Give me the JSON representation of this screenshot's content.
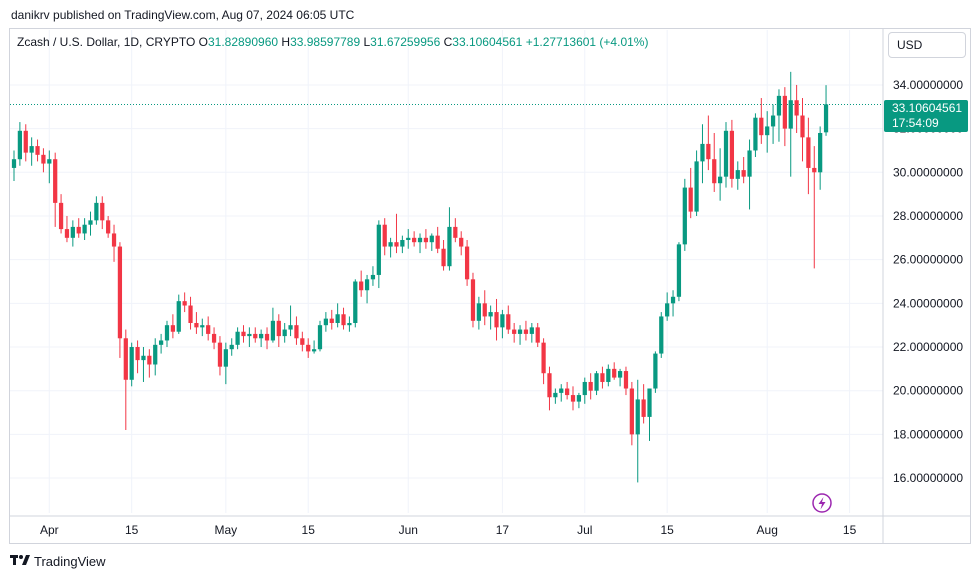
{
  "publisher_line": "danikrv published on TradingView.com, Aug 07, 2024 06:05 UTC",
  "legend": {
    "symbol": "Zcash / U.S. Dollar, 1D, CRYPTO",
    "o_label": "O",
    "o_value": "31.82890960",
    "h_label": "H",
    "h_value": "33.98597789",
    "l_label": "L",
    "l_value": "31.67259956",
    "c_label": "C",
    "c_value": "33.10604561",
    "change": "+1.27713601 (+4.01%)"
  },
  "currency_button": "USD",
  "last_price": {
    "value": "33.10604561",
    "countdown": "17:54:09"
  },
  "footer_brand": "TradingView",
  "colors": {
    "up": "#089981",
    "down": "#f23645",
    "grid": "#f0f3fa"
  },
  "icons": {
    "lightning": "lightning-icon",
    "logo": "tradingview-logo-icon"
  },
  "chart_data": {
    "type": "candlestick",
    "ylim": [
      14.4,
      35.6
    ],
    "y_ticks": [
      "16.00000000",
      "18.00000000",
      "20.00000000",
      "22.00000000",
      "24.00000000",
      "26.00000000",
      "28.00000000",
      "30.00000000",
      "32.00000000",
      "34.00000000"
    ],
    "y_tick_values": [
      16,
      18,
      20,
      22,
      24,
      26,
      28,
      30,
      32,
      34
    ],
    "x_tick_labels": [
      "Apr",
      "15",
      "May",
      "15",
      "Jun",
      "17",
      "Jul",
      "15",
      "Aug",
      "15"
    ],
    "x_tick_dates": [
      "2024-04-01",
      "2024-04-15",
      "2024-05-01",
      "2024-05-15",
      "2024-06-01",
      "2024-06-17",
      "2024-07-01",
      "2024-07-15",
      "2024-08-01",
      "2024-08-15"
    ],
    "x_range": [
      "2024-03-26",
      "2024-08-20"
    ],
    "last_close": 33.10604561,
    "ohlc": [
      [
        "2024-03-26",
        30.2,
        31.0,
        29.6,
        30.6
      ],
      [
        "2024-03-27",
        30.6,
        32.3,
        30.3,
        31.9
      ],
      [
        "2024-03-28",
        31.9,
        32.2,
        30.5,
        30.9
      ],
      [
        "2024-03-29",
        30.9,
        31.6,
        30.3,
        31.2
      ],
      [
        "2024-03-30",
        31.2,
        31.5,
        30.5,
        30.8
      ],
      [
        "2024-03-31",
        30.8,
        31.1,
        30.0,
        30.4
      ],
      [
        "2024-04-01",
        30.4,
        31.0,
        29.5,
        30.6
      ],
      [
        "2024-04-02",
        30.6,
        30.9,
        27.5,
        28.6
      ],
      [
        "2024-04-03",
        28.6,
        29.0,
        27.2,
        27.4
      ],
      [
        "2024-04-04",
        27.4,
        28.0,
        26.8,
        27.0
      ],
      [
        "2024-04-05",
        27.0,
        27.8,
        26.6,
        27.5
      ],
      [
        "2024-04-06",
        27.5,
        27.9,
        27.0,
        27.2
      ],
      [
        "2024-04-07",
        27.2,
        27.9,
        26.9,
        27.6
      ],
      [
        "2024-04-08",
        27.6,
        28.2,
        27.1,
        27.8
      ],
      [
        "2024-04-09",
        27.8,
        28.9,
        27.6,
        28.6
      ],
      [
        "2024-04-10",
        28.6,
        28.9,
        27.4,
        27.8
      ],
      [
        "2024-04-11",
        27.8,
        28.0,
        27.0,
        27.2
      ],
      [
        "2024-04-12",
        27.2,
        27.6,
        25.9,
        26.6
      ],
      [
        "2024-04-13",
        26.6,
        26.8,
        21.5,
        22.4
      ],
      [
        "2024-04-14",
        22.4,
        22.8,
        18.2,
        20.5
      ],
      [
        "2024-04-15",
        20.5,
        22.2,
        20.2,
        22.0
      ],
      [
        "2024-04-16",
        22.0,
        22.3,
        20.8,
        21.4
      ],
      [
        "2024-04-17",
        21.4,
        22.0,
        20.4,
        21.6
      ],
      [
        "2024-04-18",
        21.6,
        21.9,
        20.6,
        21.2
      ],
      [
        "2024-04-19",
        21.2,
        22.4,
        20.7,
        22.1
      ],
      [
        "2024-04-20",
        22.1,
        22.6,
        21.7,
        22.3
      ],
      [
        "2024-04-21",
        22.3,
        23.2,
        22.0,
        23.0
      ],
      [
        "2024-04-22",
        23.0,
        23.5,
        22.4,
        22.7
      ],
      [
        "2024-04-23",
        22.7,
        24.4,
        22.6,
        24.1
      ],
      [
        "2024-04-24",
        24.1,
        24.5,
        23.6,
        23.9
      ],
      [
        "2024-04-25",
        23.9,
        24.3,
        22.8,
        23.1
      ],
      [
        "2024-04-26",
        23.1,
        23.6,
        22.6,
        22.9
      ],
      [
        "2024-04-27",
        22.9,
        23.3,
        22.5,
        23.0
      ],
      [
        "2024-04-28",
        23.0,
        23.4,
        22.3,
        22.6
      ],
      [
        "2024-04-29",
        22.6,
        22.9,
        21.9,
        22.2
      ],
      [
        "2024-04-30",
        22.2,
        22.5,
        20.7,
        21.1
      ],
      [
        "2024-05-01",
        21.1,
        22.2,
        20.3,
        21.9
      ],
      [
        "2024-05-02",
        21.9,
        22.4,
        21.6,
        22.1
      ],
      [
        "2024-05-03",
        22.1,
        22.9,
        21.9,
        22.7
      ],
      [
        "2024-05-04",
        22.7,
        23.0,
        22.2,
        22.5
      ],
      [
        "2024-05-05",
        22.5,
        22.9,
        22.0,
        22.6
      ],
      [
        "2024-05-06",
        22.6,
        22.9,
        22.2,
        22.4
      ],
      [
        "2024-05-07",
        22.4,
        22.8,
        22.0,
        22.6
      ],
      [
        "2024-05-08",
        22.6,
        22.9,
        21.9,
        22.3
      ],
      [
        "2024-05-09",
        22.3,
        23.8,
        22.2,
        23.2
      ],
      [
        "2024-05-10",
        23.2,
        23.5,
        22.0,
        22.5
      ],
      [
        "2024-05-11",
        22.5,
        23.1,
        22.2,
        22.8
      ],
      [
        "2024-05-12",
        22.8,
        23.9,
        22.5,
        23.0
      ],
      [
        "2024-05-13",
        23.0,
        23.4,
        22.1,
        22.4
      ],
      [
        "2024-05-14",
        22.4,
        22.7,
        21.8,
        22.1
      ],
      [
        "2024-05-15",
        22.1,
        22.4,
        21.5,
        21.8
      ],
      [
        "2024-05-16",
        21.8,
        22.3,
        21.7,
        21.9
      ],
      [
        "2024-05-17",
        21.9,
        23.2,
        21.8,
        23.0
      ],
      [
        "2024-05-18",
        23.0,
        23.6,
        22.7,
        23.3
      ],
      [
        "2024-05-19",
        23.3,
        23.7,
        22.8,
        23.1
      ],
      [
        "2024-05-20",
        23.1,
        24.0,
        22.9,
        23.5
      ],
      [
        "2024-05-21",
        23.5,
        23.8,
        22.8,
        23.0
      ],
      [
        "2024-05-22",
        23.0,
        23.4,
        22.7,
        23.1
      ],
      [
        "2024-05-23",
        23.1,
        25.1,
        22.9,
        25.0
      ],
      [
        "2024-05-24",
        25.0,
        25.5,
        24.3,
        24.6
      ],
      [
        "2024-05-25",
        24.6,
        25.3,
        24.0,
        25.1
      ],
      [
        "2024-05-26",
        25.1,
        25.7,
        24.8,
        25.3
      ],
      [
        "2024-05-27",
        25.3,
        27.8,
        24.7,
        27.6
      ],
      [
        "2024-05-28",
        27.6,
        27.9,
        26.2,
        26.6
      ],
      [
        "2024-05-29",
        26.6,
        27.0,
        26.1,
        26.8
      ],
      [
        "2024-05-30",
        26.8,
        28.1,
        26.3,
        26.6
      ],
      [
        "2024-05-31",
        26.6,
        27.1,
        26.3,
        26.9
      ],
      [
        "2024-06-01",
        26.9,
        27.4,
        26.5,
        27.0
      ],
      [
        "2024-06-02",
        27.0,
        27.3,
        26.6,
        26.8
      ],
      [
        "2024-06-03",
        26.8,
        27.2,
        26.3,
        27.0
      ],
      [
        "2024-06-04",
        27.0,
        27.4,
        26.5,
        26.8
      ],
      [
        "2024-06-05",
        26.8,
        27.2,
        26.4,
        27.1
      ],
      [
        "2024-06-06",
        27.1,
        27.5,
        26.3,
        26.5
      ],
      [
        "2024-06-07",
        26.5,
        26.9,
        25.5,
        25.7
      ],
      [
        "2024-06-08",
        25.7,
        28.4,
        25.5,
        27.5
      ],
      [
        "2024-06-09",
        27.5,
        27.9,
        26.8,
        27.0
      ],
      [
        "2024-06-10",
        27.0,
        27.3,
        26.2,
        26.6
      ],
      [
        "2024-06-11",
        26.6,
        26.9,
        24.8,
        25.1
      ],
      [
        "2024-06-12",
        25.1,
        25.4,
        22.9,
        23.2
      ],
      [
        "2024-06-13",
        23.2,
        24.3,
        22.8,
        24.0
      ],
      [
        "2024-06-14",
        24.0,
        24.6,
        23.0,
        23.4
      ],
      [
        "2024-06-15",
        23.4,
        23.9,
        22.8,
        23.6
      ],
      [
        "2024-06-16",
        23.6,
        24.2,
        22.3,
        22.9
      ],
      [
        "2024-06-17",
        22.9,
        23.7,
        22.4,
        23.5
      ],
      [
        "2024-06-18",
        23.5,
        23.9,
        22.6,
        22.8
      ],
      [
        "2024-06-19",
        22.8,
        23.1,
        22.2,
        22.6
      ],
      [
        "2024-06-20",
        22.6,
        23.0,
        22.1,
        22.8
      ],
      [
        "2024-06-21",
        22.8,
        23.2,
        22.3,
        22.6
      ],
      [
        "2024-06-22",
        22.6,
        23.1,
        22.2,
        22.9
      ],
      [
        "2024-06-23",
        22.9,
        23.1,
        22.0,
        22.2
      ],
      [
        "2024-06-24",
        22.2,
        22.4,
        20.3,
        20.8
      ],
      [
        "2024-06-25",
        20.8,
        21.1,
        19.1,
        19.7
      ],
      [
        "2024-06-26",
        19.7,
        20.1,
        19.4,
        19.9
      ],
      [
        "2024-06-27",
        19.9,
        20.3,
        19.5,
        20.1
      ],
      [
        "2024-06-28",
        20.1,
        20.4,
        19.6,
        19.8
      ],
      [
        "2024-06-29",
        19.8,
        20.2,
        19.1,
        19.5
      ],
      [
        "2024-06-30",
        19.5,
        19.9,
        19.2,
        19.8
      ],
      [
        "2024-07-01",
        19.8,
        20.6,
        19.4,
        20.4
      ],
      [
        "2024-07-02",
        20.4,
        20.8,
        19.6,
        20.0
      ],
      [
        "2024-07-03",
        20.0,
        20.9,
        19.8,
        20.8
      ],
      [
        "2024-07-04",
        20.8,
        21.1,
        20.1,
        20.4
      ],
      [
        "2024-07-05",
        20.4,
        21.2,
        20.2,
        21.0
      ],
      [
        "2024-07-06",
        21.0,
        21.3,
        20.5,
        20.6
      ],
      [
        "2024-07-07",
        20.6,
        21.0,
        20.2,
        20.9
      ],
      [
        "2024-07-08",
        20.9,
        21.1,
        19.8,
        20.1
      ],
      [
        "2024-07-09",
        20.1,
        20.4,
        17.5,
        18.0
      ],
      [
        "2024-07-10",
        18.0,
        20.5,
        15.8,
        19.6
      ],
      [
        "2024-07-11",
        19.6,
        20.3,
        18.5,
        18.8
      ],
      [
        "2024-07-12",
        18.8,
        20.1,
        17.7,
        20.1
      ],
      [
        "2024-07-13",
        20.1,
        21.8,
        19.9,
        21.7
      ],
      [
        "2024-07-14",
        21.7,
        23.6,
        21.5,
        23.4
      ],
      [
        "2024-07-15",
        23.4,
        24.5,
        23.2,
        24.0
      ],
      [
        "2024-07-16",
        24.0,
        24.6,
        23.4,
        24.3
      ],
      [
        "2024-07-17",
        24.3,
        26.8,
        24.1,
        26.7
      ],
      [
        "2024-07-18",
        26.7,
        29.7,
        26.4,
        29.3
      ],
      [
        "2024-07-19",
        29.3,
        30.2,
        27.9,
        28.2
      ],
      [
        "2024-07-20",
        28.2,
        31.0,
        28.0,
        30.5
      ],
      [
        "2024-07-21",
        30.5,
        32.2,
        29.5,
        31.3
      ],
      [
        "2024-07-22",
        31.3,
        32.6,
        30.1,
        30.6
      ],
      [
        "2024-07-23",
        30.6,
        31.8,
        29.1,
        29.5
      ],
      [
        "2024-07-24",
        29.5,
        31.1,
        28.7,
        29.8
      ],
      [
        "2024-07-25",
        29.8,
        32.3,
        29.3,
        31.9
      ],
      [
        "2024-07-26",
        31.9,
        32.4,
        29.3,
        29.7
      ],
      [
        "2024-07-27",
        29.7,
        30.5,
        29.2,
        30.1
      ],
      [
        "2024-07-28",
        30.1,
        30.7,
        29.5,
        29.8
      ],
      [
        "2024-07-29",
        29.8,
        31.5,
        28.3,
        31.0
      ],
      [
        "2024-07-30",
        31.0,
        32.7,
        30.7,
        32.5
      ],
      [
        "2024-07-31",
        32.5,
        33.4,
        31.3,
        31.7
      ],
      [
        "2024-08-01",
        31.7,
        32.8,
        30.9,
        32.1
      ],
      [
        "2024-08-02",
        32.1,
        33.1,
        31.3,
        32.6
      ],
      [
        "2024-08-03",
        32.6,
        33.8,
        31.4,
        33.5
      ],
      [
        "2024-08-04",
        33.5,
        33.9,
        31.2,
        32.0
      ],
      [
        "2024-08-05",
        32.0,
        34.6,
        29.8,
        33.3
      ],
      [
        "2024-08-06",
        33.3,
        34.0,
        31.8,
        32.6
      ],
      [
        "2024-08-07",
        32.6,
        33.4,
        30.5,
        31.6
      ],
      [
        "2024-08-08",
        31.6,
        32.5,
        29.0,
        30.2
      ],
      [
        "2024-08-09",
        30.2,
        31.2,
        25.6,
        30.0
      ],
      [
        "2024-08-10",
        30.0,
        32.1,
        29.2,
        31.8
      ],
      [
        "2024-08-11",
        31.83,
        33.99,
        31.67,
        33.11
      ]
    ]
  }
}
